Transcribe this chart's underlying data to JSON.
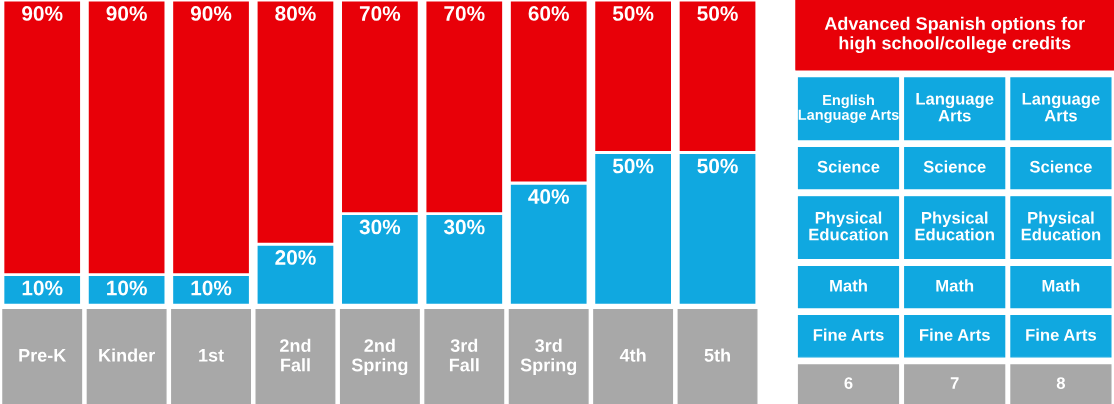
{
  "chart_data": [
    {
      "type": "bar",
      "stacked": true,
      "categories": [
        "Pre-K",
        "Kinder",
        "1st",
        "2nd\nFall",
        "2nd\nSpring",
        "3rd\nFall",
        "3rd\nSpring",
        "4th",
        "5th"
      ],
      "ylim": [
        0,
        100
      ],
      "series": [
        {
          "color": "#10a8e0",
          "values": [
            10,
            10,
            10,
            20,
            30,
            30,
            40,
            50,
            50
          ],
          "value_labels": [
            "10%",
            "10%",
            "10%",
            "20%",
            "30%",
            "30%",
            "40%",
            "50%",
            "50%"
          ]
        },
        {
          "color": "#e80008",
          "values": [
            90,
            90,
            90,
            80,
            70,
            70,
            60,
            50,
            50
          ],
          "value_labels": [
            "90%",
            "90%",
            "90%",
            "80%",
            "70%",
            "70%",
            "60%",
            "50%",
            "50%"
          ]
        }
      ]
    },
    {
      "type": "other",
      "title": "Advanced Spanish options for\nhigh school/college credits",
      "categories": [
        "6",
        "7",
        "8"
      ],
      "annotations": [
        "English\nLanguage Arts",
        "Language\nArts",
        "Language\nArts",
        "Science",
        "Science",
        "Science",
        "Physical\nEducation",
        "Physical\nEducation",
        "Physical\nEducation",
        "Math",
        "Math",
        "Math",
        "Fine Arts",
        "Fine Arts",
        "Fine Arts"
      ]
    }
  ]
}
